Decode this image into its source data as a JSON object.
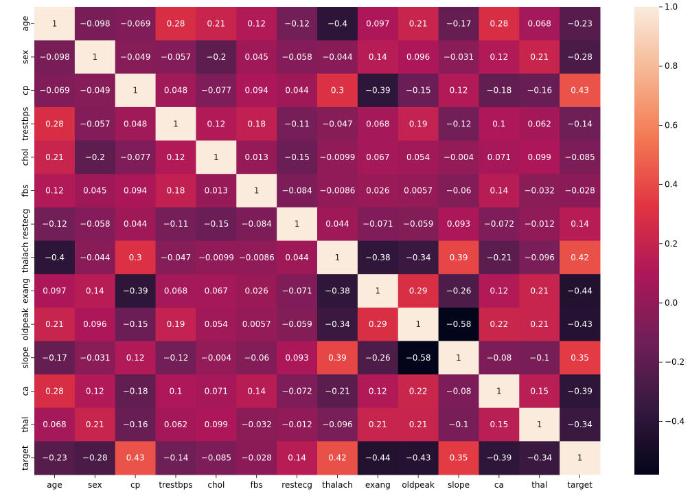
{
  "chart_data": {
    "type": "heatmap",
    "title": "",
    "xlabel": "",
    "ylabel": "",
    "labels": [
      "age",
      "sex",
      "cp",
      "trestbps",
      "chol",
      "fbs",
      "restecg",
      "thalach",
      "exang",
      "oldpeak",
      "slope",
      "ca",
      "thal",
      "target"
    ],
    "matrix": [
      [
        1,
        -0.098,
        -0.069,
        0.28,
        0.21,
        0.12,
        -0.12,
        -0.4,
        0.097,
        0.21,
        -0.17,
        0.28,
        0.068,
        -0.23
      ],
      [
        -0.098,
        1,
        -0.049,
        -0.057,
        -0.2,
        0.045,
        -0.058,
        -0.044,
        0.14,
        0.096,
        -0.031,
        0.12,
        0.21,
        -0.28
      ],
      [
        -0.069,
        -0.049,
        1,
        0.048,
        -0.077,
        0.094,
        0.044,
        0.3,
        -0.39,
        -0.15,
        0.12,
        -0.18,
        -0.16,
        0.43
      ],
      [
        0.28,
        -0.057,
        0.048,
        1,
        0.12,
        0.18,
        -0.11,
        -0.047,
        0.068,
        0.19,
        -0.12,
        0.1,
        0.062,
        -0.14
      ],
      [
        0.21,
        -0.2,
        -0.077,
        0.12,
        1,
        0.013,
        -0.15,
        -0.0099,
        0.067,
        0.054,
        -0.004,
        0.071,
        0.099,
        -0.085
      ],
      [
        0.12,
        0.045,
        0.094,
        0.18,
        0.013,
        1,
        -0.084,
        -0.0086,
        0.026,
        0.0057,
        -0.06,
        0.14,
        -0.032,
        -0.028
      ],
      [
        -0.12,
        -0.058,
        0.044,
        -0.11,
        -0.15,
        -0.084,
        1,
        0.044,
        -0.071,
        -0.059,
        0.093,
        -0.072,
        -0.012,
        0.14
      ],
      [
        -0.4,
        -0.044,
        0.3,
        -0.047,
        -0.0099,
        -0.0086,
        0.044,
        1,
        -0.38,
        -0.34,
        0.39,
        -0.21,
        -0.096,
        0.42
      ],
      [
        0.097,
        0.14,
        -0.39,
        0.068,
        0.067,
        0.026,
        -0.071,
        -0.38,
        1,
        0.29,
        -0.26,
        0.12,
        0.21,
        -0.44
      ],
      [
        0.21,
        0.096,
        -0.15,
        0.19,
        0.054,
        0.0057,
        -0.059,
        -0.34,
        0.29,
        1,
        -0.58,
        0.22,
        0.21,
        -0.43
      ],
      [
        -0.17,
        -0.031,
        0.12,
        -0.12,
        -0.004,
        -0.06,
        0.093,
        0.39,
        -0.26,
        -0.58,
        1,
        -0.08,
        -0.1,
        0.35
      ],
      [
        0.28,
        0.12,
        -0.18,
        0.1,
        0.071,
        0.14,
        -0.072,
        -0.21,
        0.12,
        0.22,
        -0.08,
        1,
        0.15,
        -0.39
      ],
      [
        0.068,
        0.21,
        -0.16,
        0.062,
        0.099,
        -0.032,
        -0.012,
        -0.096,
        0.21,
        0.21,
        -0.1,
        0.15,
        1,
        -0.34
      ],
      [
        -0.23,
        -0.28,
        0.43,
        -0.14,
        -0.085,
        -0.028,
        0.14,
        0.42,
        -0.44,
        -0.43,
        0.35,
        -0.39,
        -0.34,
        1
      ]
    ],
    "vmin": -0.58,
    "vmax": 1.0,
    "colorbar_ticks": [
      1.0,
      0.8,
      0.6,
      0.4,
      0.2,
      0.0,
      -0.2,
      -0.4
    ],
    "colorbar_tick_labels": [
      "1.0",
      "0.8",
      "0.6",
      "0.4",
      "0.2",
      "0.0",
      "−0.2",
      "−0.4"
    ],
    "colormap": "rocket",
    "colormap_stops": [
      "#03051a",
      "#36193e",
      "#701f57",
      "#ad1759",
      "#e13342",
      "#f37651",
      "#f6b48f",
      "#faebdd"
    ],
    "annotate": true
  }
}
